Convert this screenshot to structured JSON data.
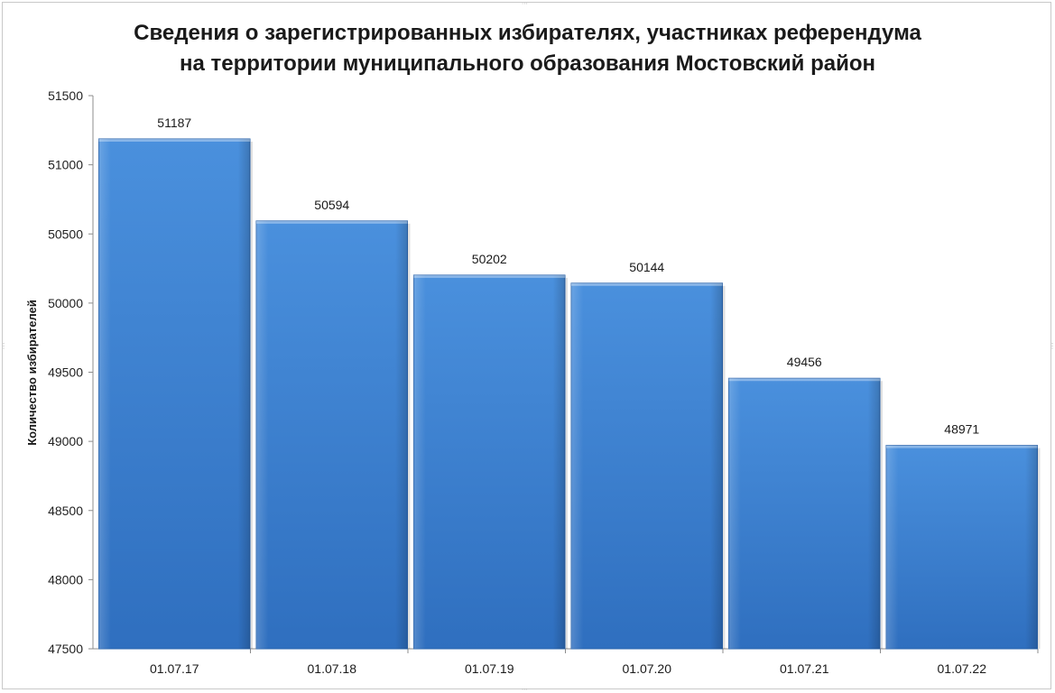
{
  "chart_data": {
    "type": "bar",
    "title_lines": [
      "Сведения о зарегистрированных избирателях, участниках референдума",
      "на территории муниципального образования Мостовский район"
    ],
    "ylabel": "Количество избирателей",
    "xlabel": "",
    "categories": [
      "01.07.17",
      "01.07.18",
      "01.07.19",
      "01.07.20",
      "01.07.21",
      "01.07.22"
    ],
    "values": [
      51187,
      50594,
      50202,
      50144,
      49456,
      48971
    ],
    "ylim": [
      47500,
      51500
    ],
    "yticks": [
      47500,
      48000,
      48500,
      49000,
      49500,
      50000,
      50500,
      51000,
      51500
    ],
    "grid": false,
    "legend": "none",
    "bar_color": "#3f86d6"
  }
}
